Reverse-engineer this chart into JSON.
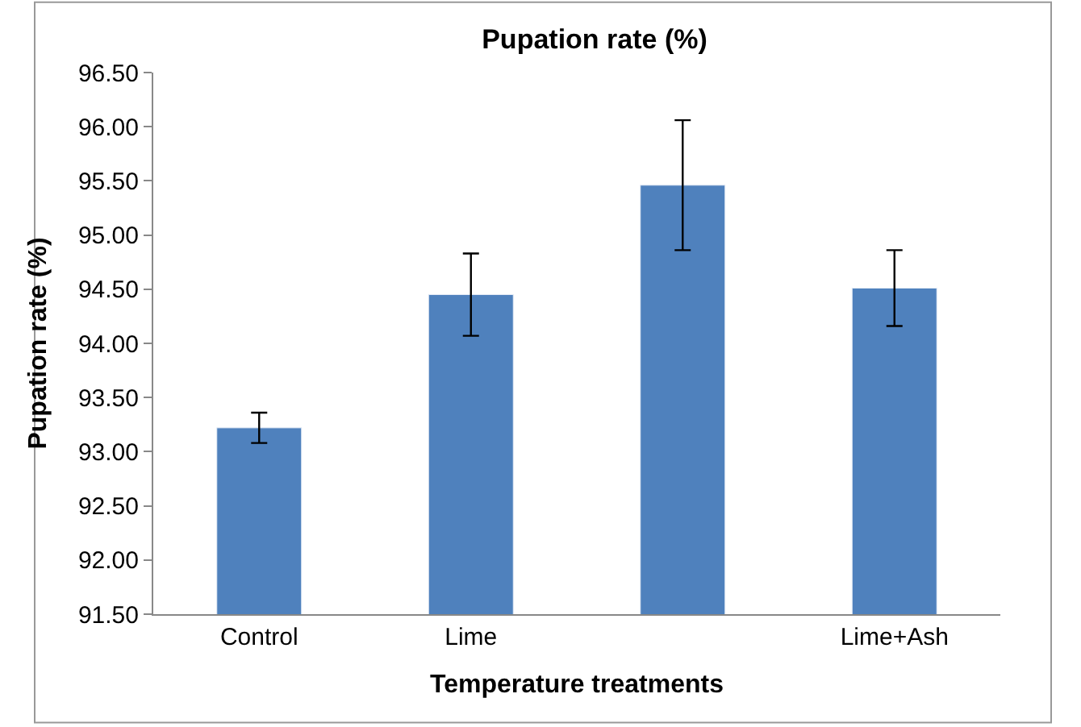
{
  "chart_data": {
    "type": "bar",
    "title": "Pupation rate (%)",
    "xlabel": "Temperature treatments",
    "ylabel": "Pupation rate (%)",
    "categories": [
      "Control",
      "Lime",
      null,
      "Lime+Ash"
    ],
    "values": [
      93.22,
      94.45,
      95.46,
      94.51
    ],
    "errors": [
      0.14,
      0.38,
      0.6,
      0.35
    ],
    "color": "#4f81bd",
    "ylim": [
      91.5,
      96.5
    ],
    "yticks": [
      {
        "value": 91.5,
        "label": "91.50"
      },
      {
        "value": 92,
        "label": "92.00"
      },
      {
        "value": 92.5,
        "label": "92.50"
      },
      {
        "value": 93,
        "label": "93.00"
      },
      {
        "value": 93.5,
        "label": "93.50"
      },
      {
        "value": 94,
        "label": "94.00"
      },
      {
        "value": 94.5,
        "label": "94.50"
      },
      {
        "value": 95,
        "label": "95.00"
      },
      {
        "value": 95.5,
        "label": "95.50"
      },
      {
        "value": 96,
        "label": "96.00"
      },
      {
        "value": 96.5,
        "label": "96.50"
      }
    ],
    "legend": false
  }
}
